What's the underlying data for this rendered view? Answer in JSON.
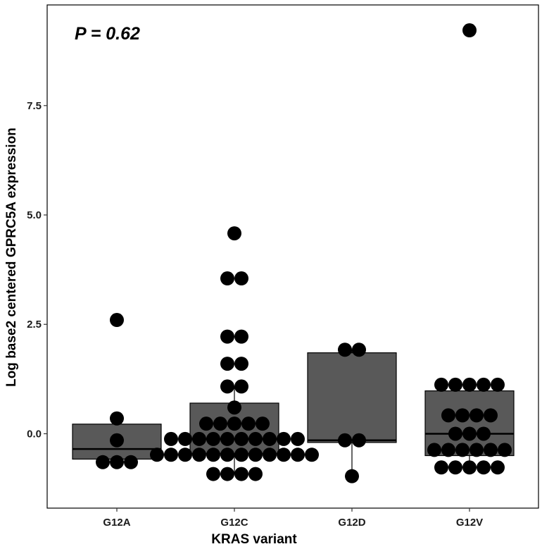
{
  "chart_data": {
    "type": "box",
    "annotation": "P = 0.62",
    "xlabel": "KRAS variant",
    "ylabel": "Log base2 centered GPRC5A expression",
    "categories": [
      "G12A",
      "G12C",
      "G12D",
      "G12V"
    ],
    "ylim": [
      -1.7,
      9.8
    ],
    "yticks": [
      0.0,
      2.5,
      5.0,
      7.5
    ],
    "ytick_labels": [
      "0.0",
      "2.5",
      "5.0",
      "7.5"
    ],
    "grid": false,
    "box_fill": "#595959",
    "point_color": "#000000",
    "boxes": [
      {
        "category": "G12A",
        "q1": -0.58,
        "median": -0.35,
        "q3": 0.22,
        "whisker_low": -0.65,
        "whisker_high": 0.35
      },
      {
        "category": "G12C",
        "q1": -0.45,
        "median": -0.12,
        "q3": 0.7,
        "whisker_low": -0.92,
        "whisker_high": 1.08
      },
      {
        "category": "G12D",
        "q1": -0.2,
        "median": -0.15,
        "q3": 1.85,
        "whisker_low": -0.97,
        "whisker_high": 1.92
      },
      {
        "category": "G12V",
        "q1": -0.5,
        "median": 0.0,
        "q3": 0.98,
        "whisker_low": -0.77,
        "whisker_high": 1.12
      }
    ],
    "points": [
      {
        "category": "G12A",
        "values": [
          2.6,
          0.35,
          -0.15,
          -0.65,
          -0.65,
          -0.65
        ]
      },
      {
        "category": "G12C",
        "values": [
          4.58,
          3.55,
          3.55,
          2.22,
          2.22,
          1.6,
          1.6,
          1.08,
          1.08,
          0.6,
          0.23,
          0.23,
          0.23,
          0.23,
          0.23,
          -0.12,
          -0.12,
          -0.12,
          -0.12,
          -0.12,
          -0.12,
          -0.12,
          -0.12,
          -0.12,
          -0.12,
          -0.48,
          -0.48,
          -0.48,
          -0.48,
          -0.48,
          -0.48,
          -0.48,
          -0.48,
          -0.48,
          -0.48,
          -0.48,
          -0.48,
          -0.92,
          -0.92,
          -0.92,
          -0.92
        ]
      },
      {
        "category": "G12D",
        "values": [
          1.92,
          1.92,
          -0.15,
          -0.15,
          -0.97
        ]
      },
      {
        "category": "G12V",
        "values": [
          9.22,
          1.12,
          1.12,
          1.12,
          1.12,
          1.12,
          0.42,
          0.42,
          0.42,
          0.42,
          0.0,
          0.0,
          0.0,
          -0.37,
          -0.37,
          -0.37,
          -0.37,
          -0.37,
          -0.37,
          -0.77,
          -0.77,
          -0.77,
          -0.77,
          -0.77
        ]
      }
    ]
  }
}
